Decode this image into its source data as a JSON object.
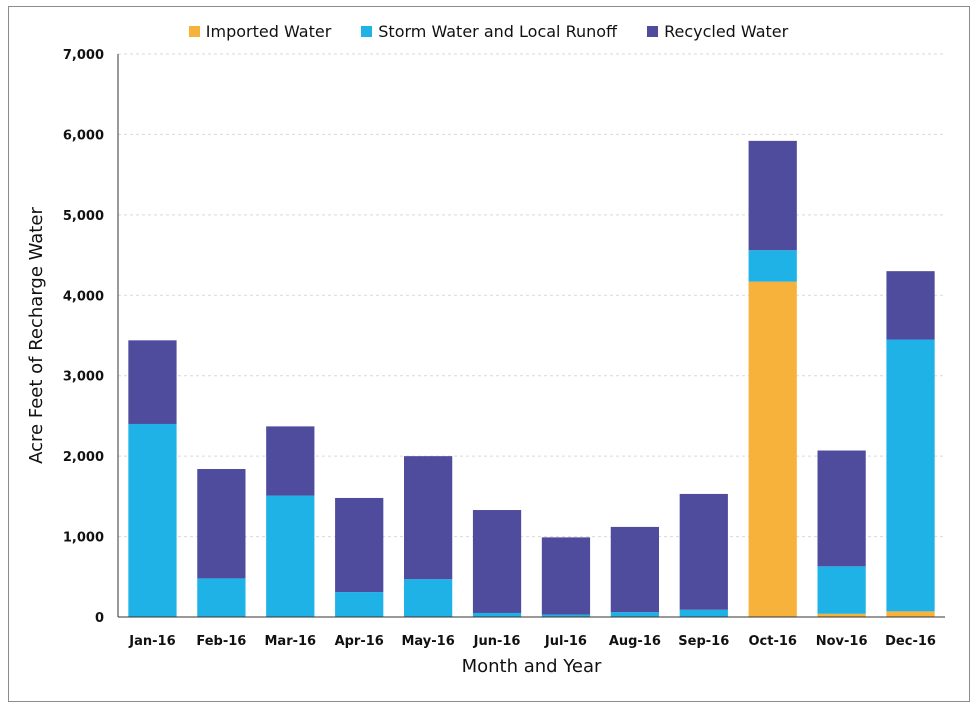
{
  "chart_data": {
    "type": "bar",
    "stacked": true,
    "title": "",
    "xlabel": "Month and Year",
    "ylabel": "Acre Feet of Recharge Water",
    "ylim": [
      0,
      7000
    ],
    "yticks": [
      0,
      1000,
      2000,
      3000,
      4000,
      5000,
      6000,
      7000
    ],
    "ytick_labels": [
      "0",
      "1,000",
      "2,000",
      "3,000",
      "4,000",
      "5,000",
      "6,000",
      "7,000"
    ],
    "legend_position": "top",
    "grid": true,
    "categories": [
      "Jan-16",
      "Feb-16",
      "Mar-16",
      "Apr-16",
      "May-16",
      "Jun-16",
      "Jul-16",
      "Aug-16",
      "Sep-16",
      "Oct-16",
      "Nov-16",
      "Dec-16"
    ],
    "series": [
      {
        "name": "Imported Water",
        "color": "#f7b23b",
        "values": [
          0,
          0,
          0,
          0,
          0,
          0,
          0,
          0,
          0,
          4170,
          40,
          70
        ]
      },
      {
        "name": "Storm Water and Local Runoff",
        "color": "#1fb2e6",
        "values": [
          2400,
          480,
          1510,
          310,
          470,
          50,
          30,
          60,
          90,
          390,
          590,
          3380
        ]
      },
      {
        "name": "Recycled Water",
        "color": "#4f4c9e",
        "values": [
          1040,
          1360,
          860,
          1170,
          1530,
          1280,
          960,
          1060,
          1440,
          1360,
          1440,
          850
        ]
      }
    ]
  }
}
